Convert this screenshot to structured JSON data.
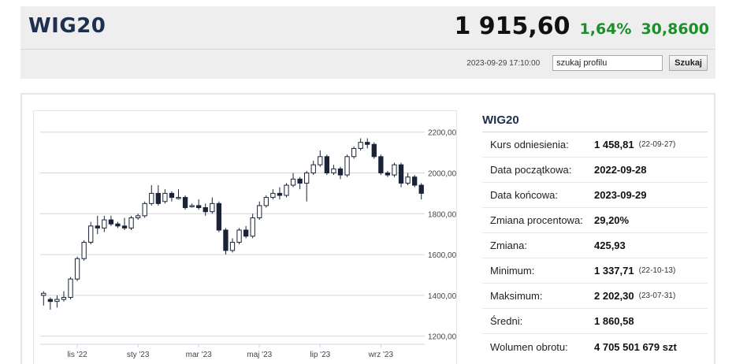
{
  "header": {
    "ticker": "WIG20",
    "price": "1 915,60",
    "change_pct": "1,64%",
    "change_abs": "30,8600",
    "timestamp": "2023-09-29 17:10:00",
    "search_value": "szukaj profilu",
    "search_button": "Szukaj",
    "colors": {
      "positive": "#1a8f2a",
      "ticker": "#1f2f4f"
    }
  },
  "stats": {
    "title": "WIG20",
    "rows": [
      {
        "label": "Kurs odniesienia:",
        "value": "1 458,81",
        "date": "(22-09-27)"
      },
      {
        "label": "Data początkowa:",
        "value": "2022-09-28",
        "date": ""
      },
      {
        "label": "Data końcowa:",
        "value": "2023-09-29",
        "date": ""
      },
      {
        "label": "Zmiana procentowa:",
        "value": "29,20%",
        "date": ""
      },
      {
        "label": "Zmiana:",
        "value": "425,93",
        "date": ""
      },
      {
        "label": "Minimum:",
        "value": "1 337,71",
        "date": "(22-10-13)"
      },
      {
        "label": "Maksimum:",
        "value": "2 202,30",
        "date": "(23-07-31)"
      },
      {
        "label": "Średni:",
        "value": "1 860,58",
        "date": ""
      },
      {
        "label": "Wolumen obrotu:",
        "value": "4 705 501 679 szt",
        "date": ""
      }
    ]
  },
  "chart_data": {
    "type": "candlestick",
    "x_ticks": [
      "lis '22",
      "sty '23",
      "mar '23",
      "maj '23",
      "lip '23",
      "wrz '23"
    ],
    "x_tick_week_index": [
      5,
      14,
      23,
      32,
      41,
      50
    ],
    "y_ticks": [
      "2200,00",
      "2000,00",
      "1800,00",
      "1600,00",
      "1400,00",
      "1200,00"
    ],
    "y_tick_values": [
      2200,
      2000,
      1800,
      1600,
      1400,
      1200
    ],
    "ylim": [
      1160,
      2280
    ],
    "grid": true,
    "colors": {
      "up": "#ffffff",
      "down": "#1b2338",
      "outline": "#1b2338"
    },
    "candles": [
      [
        1400,
        1410,
        1360,
        1420,
        1350
      ],
      [
        1380,
        1370,
        1340,
        1390,
        1330
      ],
      [
        1370,
        1380,
        1360,
        1400,
        1340
      ],
      [
        1380,
        1390,
        1380,
        1420,
        1370
      ],
      [
        1390,
        1480,
        1390,
        1490,
        1380
      ],
      [
        1480,
        1580,
        1480,
        1590,
        1470
      ],
      [
        1580,
        1660,
        1580,
        1670,
        1570
      ],
      [
        1660,
        1740,
        1660,
        1760,
        1650
      ],
      [
        1740,
        1730,
        1700,
        1790,
        1700
      ],
      [
        1730,
        1770,
        1730,
        1790,
        1710
      ],
      [
        1770,
        1750,
        1730,
        1790,
        1740
      ],
      [
        1750,
        1740,
        1720,
        1760,
        1730
      ],
      [
        1740,
        1730,
        1710,
        1780,
        1720
      ],
      [
        1730,
        1780,
        1730,
        1790,
        1720
      ],
      [
        1780,
        1790,
        1780,
        1800,
        1770
      ],
      [
        1790,
        1850,
        1790,
        1860,
        1780
      ],
      [
        1850,
        1900,
        1850,
        1940,
        1840
      ],
      [
        1900,
        1850,
        1850,
        1940,
        1840
      ],
      [
        1860,
        1900,
        1860,
        1920,
        1850
      ],
      [
        1900,
        1880,
        1870,
        1910,
        1860
      ],
      [
        1880,
        1880,
        1860,
        1920,
        1870
      ],
      [
        1880,
        1830,
        1830,
        1890,
        1820
      ],
      [
        1840,
        1840,
        1820,
        1850,
        1830
      ],
      [
        1840,
        1830,
        1800,
        1870,
        1820
      ],
      [
        1830,
        1810,
        1800,
        1850,
        1790
      ],
      [
        1810,
        1850,
        1810,
        1880,
        1800
      ],
      [
        1850,
        1720,
        1720,
        1860,
        1710
      ],
      [
        1720,
        1620,
        1620,
        1730,
        1600
      ],
      [
        1620,
        1660,
        1620,
        1680,
        1610
      ],
      [
        1660,
        1720,
        1660,
        1730,
        1650
      ],
      [
        1720,
        1690,
        1690,
        1740,
        1680
      ],
      [
        1690,
        1780,
        1690,
        1800,
        1680
      ],
      [
        1780,
        1840,
        1780,
        1860,
        1770
      ],
      [
        1840,
        1880,
        1840,
        1890,
        1830
      ],
      [
        1880,
        1900,
        1880,
        1920,
        1870
      ],
      [
        1900,
        1890,
        1880,
        1930,
        1870
      ],
      [
        1890,
        1940,
        1890,
        1950,
        1880
      ],
      [
        1940,
        1970,
        1940,
        2000,
        1930
      ],
      [
        1970,
        1950,
        1930,
        1980,
        1920
      ],
      [
        1950,
        2000,
        1950,
        2010,
        1860
      ],
      [
        2000,
        2040,
        2000,
        2060,
        1990
      ],
      [
        2040,
        2080,
        2040,
        2110,
        2030
      ],
      [
        2080,
        2000,
        2000,
        2090,
        1990
      ],
      [
        2000,
        2020,
        2000,
        2040,
        1990
      ],
      [
        2020,
        1990,
        1980,
        2030,
        1970
      ],
      [
        1990,
        2080,
        1990,
        2090,
        1980
      ],
      [
        2080,
        2120,
        2080,
        2130,
        2070
      ],
      [
        2120,
        2150,
        2120,
        2170,
        2110
      ],
      [
        2150,
        2140,
        2130,
        2170,
        2120
      ],
      [
        2140,
        2080,
        2080,
        2150,
        2070
      ],
      [
        2080,
        2000,
        2000,
        2090,
        1990
      ],
      [
        2000,
        1990,
        1970,
        2010,
        1980
      ],
      [
        1990,
        2040,
        1990,
        2050,
        1980
      ],
      [
        2040,
        1950,
        1950,
        2050,
        1930
      ],
      [
        1950,
        1980,
        1950,
        2000,
        1940
      ],
      [
        1980,
        1940,
        1930,
        1990,
        1930
      ],
      [
        1940,
        1900,
        1900,
        1950,
        1870
      ]
    ],
    "candles_format": [
      "open",
      "close",
      "low_body_ref",
      "high",
      "low"
    ]
  }
}
